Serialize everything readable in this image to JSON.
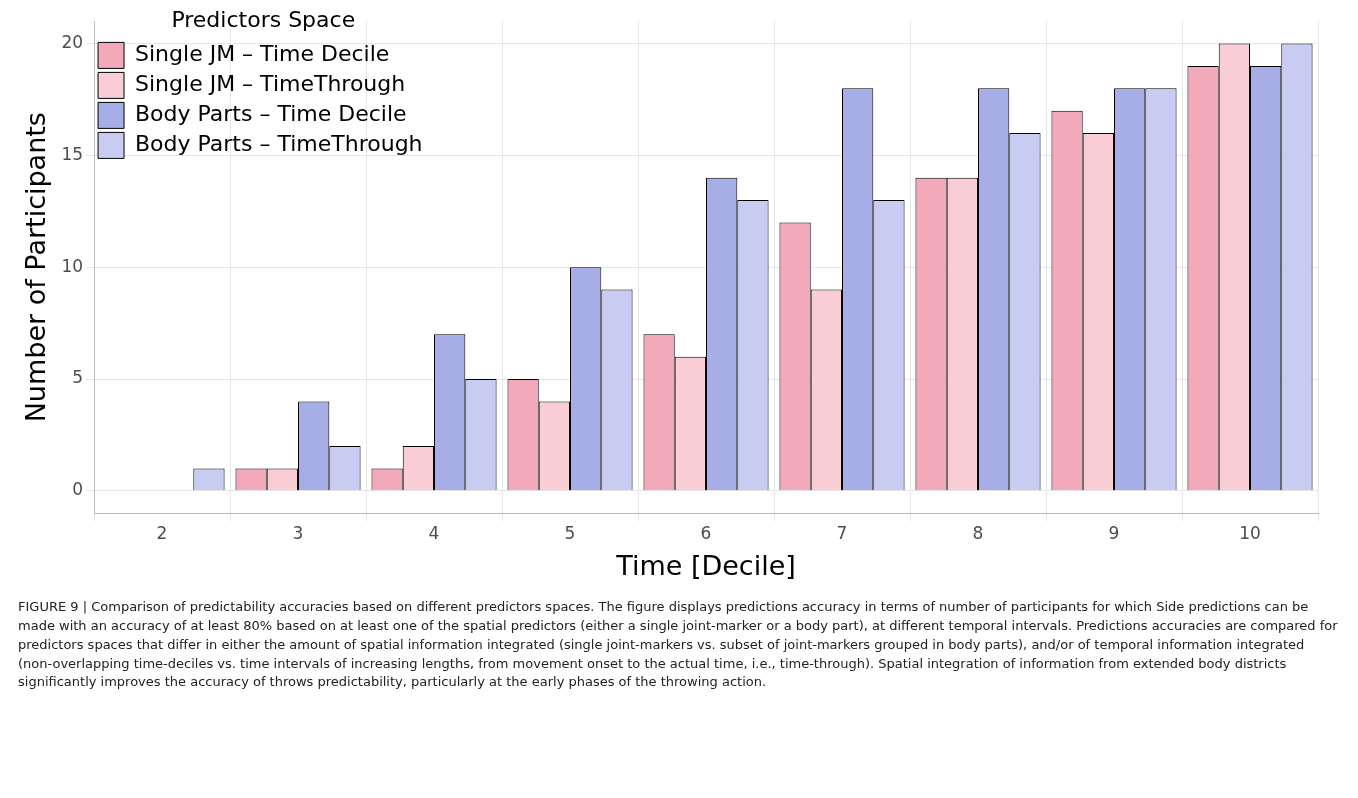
{
  "chart_data": {
    "type": "bar",
    "xlabel": "Time [Decile]",
    "ylabel": "Number of Participants",
    "legend_title": "Predictors Space",
    "categories": [
      "2",
      "3",
      "4",
      "5",
      "6",
      "7",
      "8",
      "9",
      "10"
    ],
    "series": [
      {
        "name": "Single JM – Time Decile",
        "color": "#f2a9ba",
        "values": [
          0,
          1,
          1,
          5,
          7,
          12,
          14,
          17,
          19
        ]
      },
      {
        "name": "Single JM – TimeThrough",
        "color": "#f8cdd6",
        "values": [
          0,
          1,
          2,
          4,
          6,
          9,
          14,
          16,
          20
        ]
      },
      {
        "name": "Body Parts – Time Decile",
        "color": "#a7ade6",
        "values": [
          0,
          4,
          7,
          10,
          14,
          18,
          18,
          18,
          19
        ]
      },
      {
        "name": "Body Parts – TimeThrough",
        "color": "#c9ccf2",
        "values": [
          1,
          2,
          5,
          9,
          13,
          13,
          16,
          18,
          20
        ]
      }
    ],
    "ylim": [
      -1,
      21
    ],
    "yticks": [
      0,
      5,
      10,
      15,
      20
    ],
    "grid": true,
    "legend": "top left",
    "annotations": [
      "FIGURE 9 | Comparison of predictability accuracies based on different predictors spaces. The figure displays predictions accuracy in terms of number of participants for which Side predictions can be made with an accuracy of at least 80% based on at least one of the spatial predictors (either a single joint-marker or a body part), at different temporal intervals. Predictions accuracies are compared for predictors spaces that differ in either the amount of spatial information integrated (single joint-markers vs. subset of joint-markers grouped in body parts), and/or of temporal information integrated (non-overlapping time-deciles vs. time intervals of increasing lengths, from movement onset to the actual time, i.e., time-through). Spatial integration of information from extended body districts significantly improves the accuracy of throws predictability, particularly at the early phases of the throwing action."
    ]
  }
}
